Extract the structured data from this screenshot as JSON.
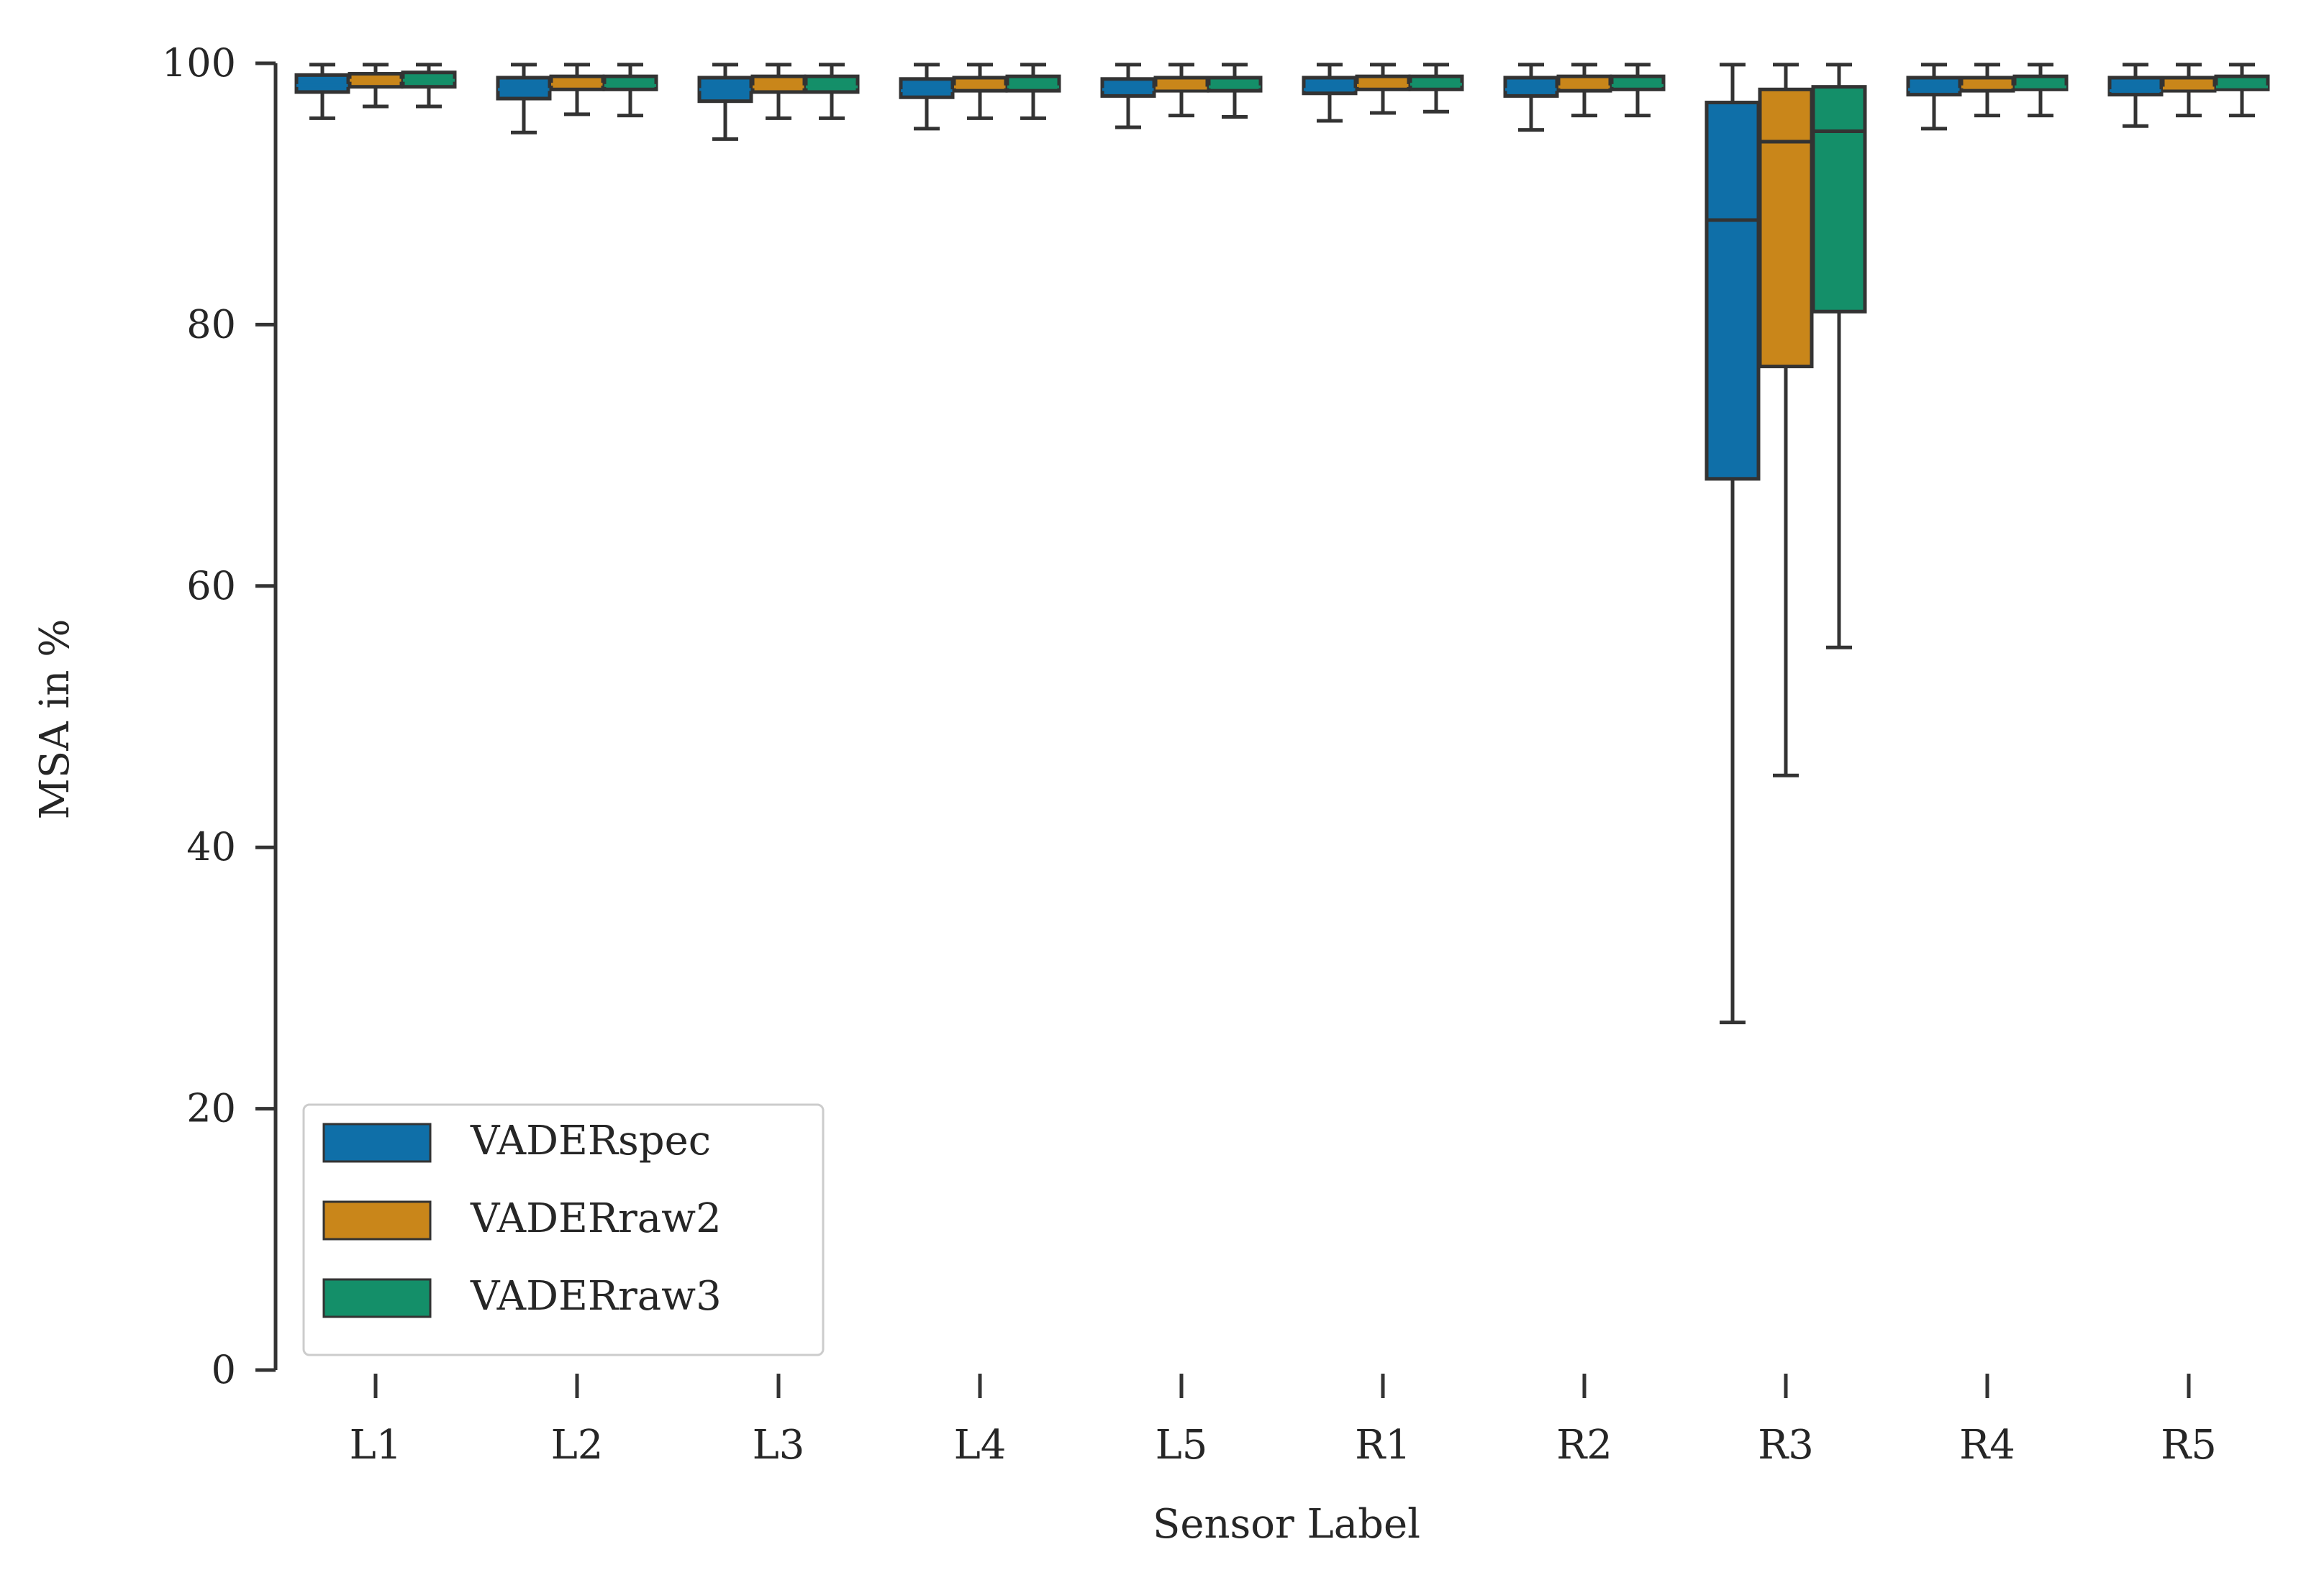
{
  "chart_data": {
    "type": "box",
    "xlabel": "Sensor Label",
    "ylabel": "MSA in %",
    "ylim": [
      0,
      100
    ],
    "yticks": [
      0,
      20,
      40,
      60,
      80,
      100
    ],
    "grid": false,
    "legend_position": "bottom-left",
    "categories": [
      "L1",
      "L2",
      "L3",
      "L4",
      "L5",
      "R1",
      "R2",
      "R3",
      "R4",
      "R5"
    ],
    "series": [
      {
        "name": "VADERspec",
        "color": "#0f6fa8",
        "boxes": [
          {
            "whislo": 95.8,
            "q1": 97.8,
            "med": 98.3,
            "q3": 99.1,
            "whishi": 99.9
          },
          {
            "whislo": 94.7,
            "q1": 97.3,
            "med": 98.0,
            "q3": 98.9,
            "whishi": 99.9
          },
          {
            "whislo": 94.2,
            "q1": 97.1,
            "med": 98.0,
            "q3": 98.9,
            "whishi": 99.9
          },
          {
            "whislo": 95.0,
            "q1": 97.4,
            "med": 97.9,
            "q3": 98.8,
            "whishi": 99.9
          },
          {
            "whislo": 95.1,
            "q1": 97.5,
            "med": 98.0,
            "q3": 98.8,
            "whishi": 99.9
          },
          {
            "whislo": 95.6,
            "q1": 97.7,
            "med": 98.0,
            "q3": 98.9,
            "whishi": 99.9
          },
          {
            "whislo": 94.9,
            "q1": 97.5,
            "med": 98.0,
            "q3": 98.9,
            "whishi": 99.9
          },
          {
            "whislo": 26.6,
            "q1": 68.2,
            "med": 88.0,
            "q3": 97.0,
            "whishi": 99.9
          },
          {
            "whislo": 95.0,
            "q1": 97.6,
            "med": 98.0,
            "q3": 98.9,
            "whishi": 99.9
          },
          {
            "whislo": 95.2,
            "q1": 97.6,
            "med": 97.9,
            "q3": 98.9,
            "whishi": 99.9
          }
        ]
      },
      {
        "name": "VADERraw2",
        "color": "#c9861a",
        "boxes": [
          {
            "whislo": 96.7,
            "q1": 98.2,
            "med": 98.7,
            "q3": 99.2,
            "whishi": 99.9
          },
          {
            "whislo": 96.1,
            "q1": 98.0,
            "med": 98.4,
            "q3": 99.0,
            "whishi": 99.9
          },
          {
            "whislo": 95.8,
            "q1": 97.8,
            "med": 98.2,
            "q3": 99.0,
            "whishi": 99.9
          },
          {
            "whislo": 95.8,
            "q1": 97.9,
            "med": 98.2,
            "q3": 98.9,
            "whishi": 99.9
          },
          {
            "whislo": 96.0,
            "q1": 97.9,
            "med": 98.1,
            "q3": 98.9,
            "whishi": 99.9
          },
          {
            "whislo": 96.2,
            "q1": 98.0,
            "med": 98.3,
            "q3": 99.0,
            "whishi": 99.9
          },
          {
            "whislo": 96.0,
            "q1": 97.9,
            "med": 98.2,
            "q3": 99.0,
            "whishi": 99.9
          },
          {
            "whislo": 45.5,
            "q1": 76.8,
            "med": 94.0,
            "q3": 98.0,
            "whishi": 99.9
          },
          {
            "whislo": 96.0,
            "q1": 97.9,
            "med": 98.2,
            "q3": 98.9,
            "whishi": 99.9
          },
          {
            "whislo": 96.0,
            "q1": 97.9,
            "med": 98.1,
            "q3": 98.9,
            "whishi": 99.9
          }
        ]
      },
      {
        "name": "VADERraw3",
        "color": "#148f69",
        "boxes": [
          {
            "whislo": 96.7,
            "q1": 98.2,
            "med": 98.7,
            "q3": 99.3,
            "whishi": 99.9
          },
          {
            "whislo": 96.0,
            "q1": 98.0,
            "med": 98.3,
            "q3": 99.0,
            "whishi": 99.9
          },
          {
            "whislo": 95.8,
            "q1": 97.8,
            "med": 98.2,
            "q3": 99.0,
            "whishi": 99.9
          },
          {
            "whislo": 95.8,
            "q1": 97.9,
            "med": 98.2,
            "q3": 99.0,
            "whishi": 99.9
          },
          {
            "whislo": 95.9,
            "q1": 97.9,
            "med": 98.2,
            "q3": 98.9,
            "whishi": 99.9
          },
          {
            "whislo": 96.3,
            "q1": 98.0,
            "med": 98.4,
            "q3": 99.0,
            "whishi": 99.9
          },
          {
            "whislo": 96.0,
            "q1": 98.0,
            "med": 98.3,
            "q3": 99.0,
            "whishi": 99.9
          },
          {
            "whislo": 55.3,
            "q1": 81.0,
            "med": 94.8,
            "q3": 98.2,
            "whishi": 99.9
          },
          {
            "whislo": 96.0,
            "q1": 98.0,
            "med": 98.2,
            "q3": 99.0,
            "whishi": 99.9
          },
          {
            "whislo": 96.0,
            "q1": 98.0,
            "med": 98.2,
            "q3": 99.0,
            "whishi": 99.9
          }
        ]
      }
    ]
  }
}
